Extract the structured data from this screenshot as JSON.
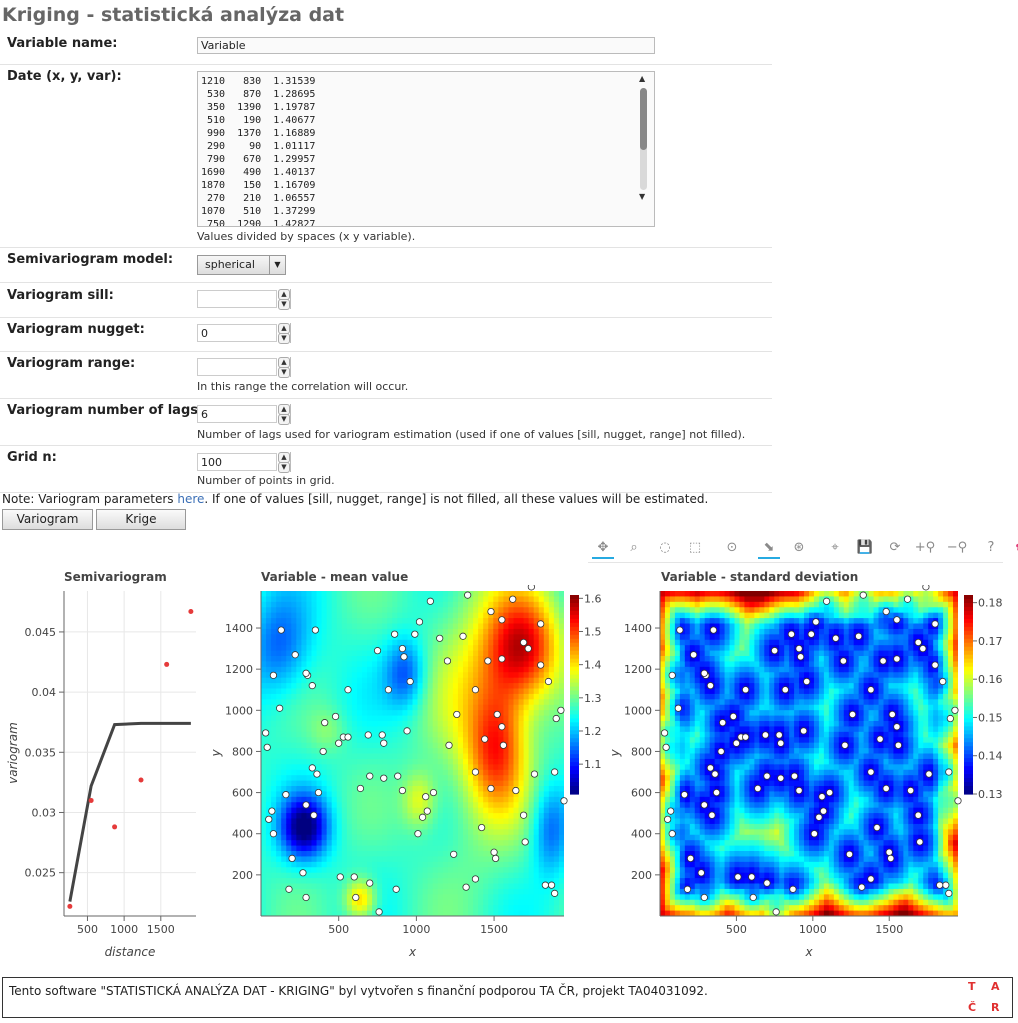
{
  "title": "Kriging - statistická analýza dat",
  "form": {
    "variable_name_label": "Variable name:",
    "variable_name_value": "Variable",
    "data_label": "Date (x, y, var):",
    "data_value": "1210   830  1.31539\n 530   870  1.28695\n 350  1390  1.19787\n 510   190  1.40677\n 990  1370  1.16889\n 290    90  1.01117\n 790   670  1.29957\n1690   490  1.40137\n1870   150  1.16709\n 270   210  1.06557\n1070   510  1.37299\n 750  1290  1.42827",
    "data_help": "Values divided by spaces (x y variable).",
    "model_label": "Semivariogram model:",
    "model_value": "spherical",
    "sill_label": "Variogram sill:",
    "sill_value": "",
    "nugget_label": "Variogram nugget:",
    "nugget_value": "0",
    "range_label": "Variogram range:",
    "range_value": "",
    "range_help": "In this range the correlation will occur.",
    "lags_label": "Variogram number of lags:",
    "lags_value": "6",
    "lags_help": "Number of lags used for variogram estimation (used if one of values [sill, nugget, range] not filled).",
    "grid_label": "Grid n:",
    "grid_value": "100",
    "grid_help": "Number of points in grid."
  },
  "note": {
    "before": "Note: Variogram parameters ",
    "link": "here",
    "after": ". If one of values [sill, nugget, range] is not filled, all these values will be estimated."
  },
  "buttons": {
    "variogram": "Variogram",
    "krige": "Krige"
  },
  "toolbar": {
    "icons": [
      "pan-icon",
      "box-zoom-icon",
      "lasso-select-icon",
      "box-select-icon",
      "wheel-zoom-icon",
      "tap-icon",
      "hover-icon",
      "crosshair-icon",
      "save-icon",
      "reset-icon",
      "zoom-in-icon",
      "zoom-out-icon",
      "help-icon",
      "bokeh-logo-icon"
    ],
    "glyphs": [
      "✥",
      "⌕",
      "◌",
      "⬚",
      "⊙",
      "⬊",
      "⊛",
      "⌖",
      "💾",
      "⟳",
      "+⚲",
      "−⚲",
      "?",
      "✿"
    ]
  },
  "chart_data": [
    {
      "type": "scatter",
      "title": "Semivariogram",
      "xlabel": "distance",
      "ylabel": "variogram",
      "xticks": [
        500,
        1000,
        1500
      ],
      "yticks": [
        0.025,
        0.03,
        0.035,
        0.04,
        0.045
      ],
      "ytick_labels": [
        "0.025",
        "0.03",
        "0.035",
        "0.04",
        "0.045"
      ],
      "xlim": [
        180,
        1980
      ],
      "ylim": [
        0.0214,
        0.0484
      ],
      "grid": true,
      "series": [
        {
          "kind": "points",
          "color": "#e53a3a",
          "x": [
            260,
            550,
            870,
            1230,
            1580,
            1910
          ],
          "y": [
            0.0222,
            0.031,
            0.0288,
            0.0327,
            0.0423,
            0.0467
          ]
        },
        {
          "kind": "line",
          "color": "#444444",
          "x": [
            260,
            550,
            870,
            1230,
            1580,
            1910
          ],
          "y": [
            0.0226,
            0.0322,
            0.0373,
            0.0374,
            0.0374,
            0.0374
          ]
        }
      ]
    },
    {
      "type": "heatmap",
      "title": "Variable - mean value",
      "xlabel": "x",
      "ylabel": "y",
      "xticks": [
        500,
        1000,
        1500
      ],
      "yticks": [
        200,
        400,
        600,
        800,
        1000,
        1200,
        1400
      ],
      "colorbar_ticks": [
        1.1,
        1.2,
        1.3,
        1.4,
        1.5,
        1.6
      ],
      "colorbar_range": [
        1.01,
        1.61
      ],
      "colormap": "jet",
      "xlim": [
        0,
        1950
      ],
      "ylim": [
        0,
        1580
      ]
    },
    {
      "type": "heatmap",
      "title": "Variable - standard deviation",
      "xlabel": "x",
      "ylabel": "y",
      "xticks": [
        500,
        1000,
        1500
      ],
      "yticks": [
        200,
        400,
        600,
        800,
        1000,
        1200,
        1400
      ],
      "colorbar_ticks": [
        0.13,
        0.14,
        0.15,
        0.16,
        0.17,
        0.18
      ],
      "colorbar_range": [
        0.13,
        0.182
      ],
      "colormap": "jet",
      "xlim": [
        0,
        1950
      ],
      "ylim": [
        0,
        1580
      ]
    }
  ],
  "sample_points": [
    [
      1210,
      830
    ],
    [
      530,
      870
    ],
    [
      350,
      1390
    ],
    [
      510,
      190
    ],
    [
      990,
      1370
    ],
    [
      290,
      90
    ],
    [
      790,
      670
    ],
    [
      1690,
      490
    ],
    [
      1870,
      150
    ],
    [
      270,
      210
    ],
    [
      1070,
      510
    ],
    [
      750,
      1290
    ],
    [
      1690,
      1330
    ],
    [
      1720,
      1300
    ],
    [
      1550,
      1250
    ],
    [
      1480,
      1480
    ],
    [
      1560,
      830
    ],
    [
      1550,
      920
    ],
    [
      1620,
      1540
    ],
    [
      1740,
      1600
    ],
    [
      1850,
      1140
    ],
    [
      1900,
      960
    ],
    [
      1890,
      700
    ],
    [
      1760,
      690
    ],
    [
      1700,
      360
    ],
    [
      1500,
      310
    ],
    [
      1510,
      280
    ],
    [
      1380,
      700
    ],
    [
      1320,
      140
    ],
    [
      1240,
      300
    ],
    [
      1110,
      600
    ],
    [
      1060,
      580
    ],
    [
      1040,
      480
    ],
    [
      1010,
      400
    ],
    [
      910,
      610
    ],
    [
      870,
      130
    ],
    [
      880,
      680
    ],
    [
      940,
      900
    ],
    [
      920,
      1260
    ],
    [
      960,
      1140
    ],
    [
      910,
      1300
    ],
    [
      860,
      1370
    ],
    [
      820,
      1100
    ],
    [
      780,
      880
    ],
    [
      690,
      880
    ],
    [
      700,
      680
    ],
    [
      560,
      1100
    ],
    [
      560,
      870
    ],
    [
      500,
      840
    ],
    [
      480,
      970
    ],
    [
      410,
      940
    ],
    [
      400,
      800
    ],
    [
      370,
      600
    ],
    [
      360,
      690
    ],
    [
      330,
      720
    ],
    [
      330,
      1120
    ],
    [
      300,
      1170
    ],
    [
      290,
      1180
    ],
    [
      220,
      1270
    ],
    [
      130,
      1390
    ],
    [
      80,
      1170
    ],
    [
      40,
      820
    ],
    [
      30,
      890
    ],
    [
      50,
      470
    ],
    [
      80,
      400
    ],
    [
      70,
      510
    ],
    [
      180,
      130
    ],
    [
      290,
      540
    ],
    [
      340,
      490
    ],
    [
      160,
      590
    ],
    [
      120,
      1010
    ],
    [
      600,
      190
    ],
    [
      610,
      90
    ],
    [
      700,
      160
    ],
    [
      760,
      20
    ],
    [
      790,
      840
    ],
    [
      1020,
      1430
    ],
    [
      1200,
      1240
    ],
    [
      1330,
      1560
    ],
    [
      1090,
      1530
    ],
    [
      1380,
      1100
    ],
    [
      1440,
      860
    ],
    [
      1420,
      430
    ],
    [
      1300,
      1360
    ],
    [
      1150,
      1350
    ],
    [
      640,
      620
    ],
    [
      200,
      280
    ],
    [
      1520,
      980
    ],
    [
      1800,
      1220
    ],
    [
      1640,
      610
    ],
    [
      1890,
      110
    ],
    [
      1830,
      150
    ],
    [
      1380,
      180
    ],
    [
      1260,
      980
    ],
    [
      1460,
      1240
    ],
    [
      1550,
      1440
    ],
    [
      1800,
      1420
    ],
    [
      1930,
      1000
    ],
    [
      1950,
      560
    ],
    [
      1480,
      620
    ]
  ],
  "footer": {
    "text": "Tento software \"STATISTICKÁ ANALÝZA DAT - KRIGING\" byl vytvořen s finanční podporou TA ČR, projekt TA04031092.",
    "logo_letters": [
      "T",
      "A",
      "Č",
      "R"
    ]
  }
}
